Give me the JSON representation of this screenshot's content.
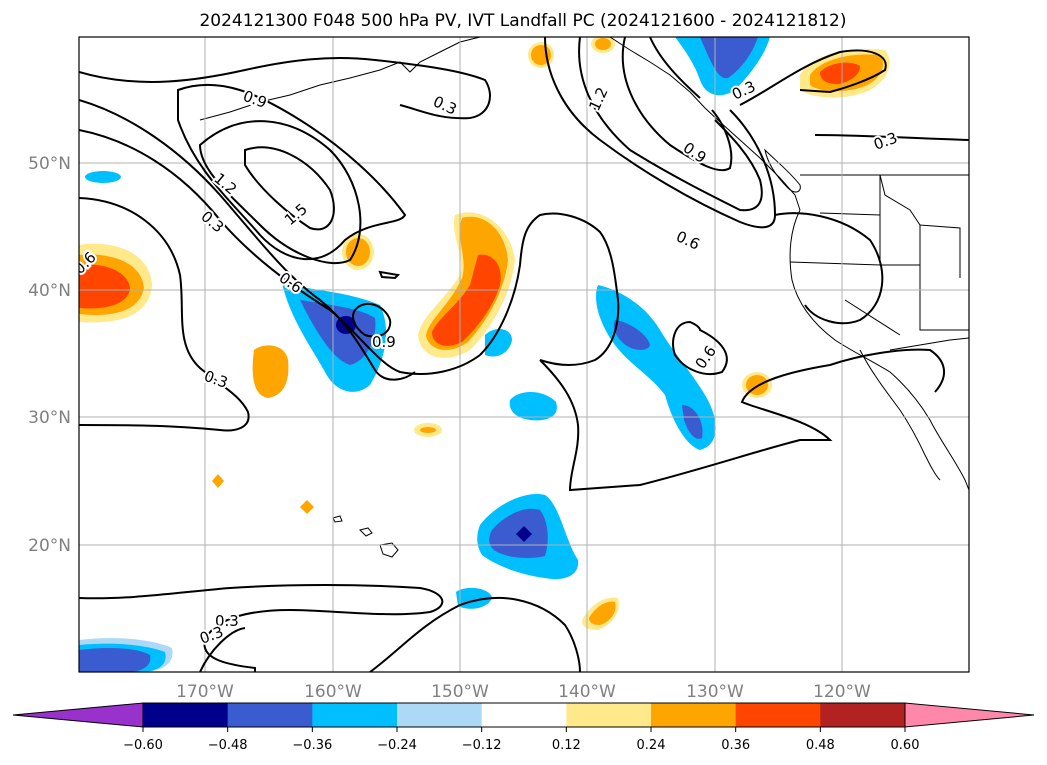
{
  "title": "2024121300 F048 500 hPa PV, IVT Landfall PC (2024121600 - 2024121812)",
  "map": {
    "lon_ticks": [
      "170°W",
      "160°W",
      "150°W",
      "140°W",
      "130°W",
      "120°W"
    ],
    "lat_ticks": [
      "50°N",
      "40°N",
      "30°N",
      "20°N"
    ],
    "grid": true,
    "contour_labels": [
      "0.9",
      "0.3",
      "1.2",
      "1.2",
      "1.5",
      "0.3",
      "0.3",
      "0.6",
      "0.9",
      "0.6",
      "0.6",
      "0.3",
      "0.3",
      "0.3",
      "0.3",
      "0.9",
      "0.6",
      "0.3"
    ]
  },
  "colorbar": {
    "ticks": [
      "−0.60",
      "−0.48",
      "−0.36",
      "−0.24",
      "−0.12",
      "0.12",
      "0.24",
      "0.36",
      "0.48",
      "0.60"
    ],
    "colors": [
      "#9932cc",
      "#00008b",
      "#3b5cd0",
      "#00bfff",
      "#add8f6",
      "#ffffff",
      "#ffe98a",
      "#ffa500",
      "#ff4500",
      "#b22222",
      "#ff88aa"
    ]
  }
}
